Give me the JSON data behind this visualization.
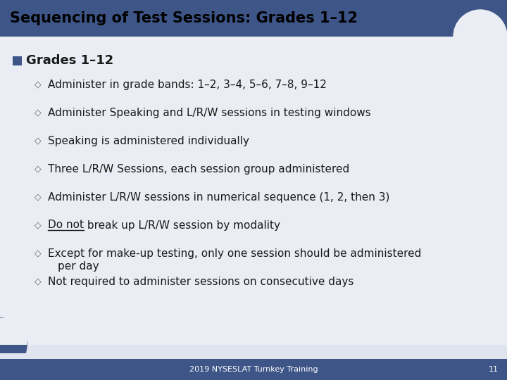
{
  "title": "Sequencing of Test Sessions: Grades 1–12",
  "title_bg_color": "#3d5587",
  "title_text_color": "#000000",
  "slide_bg_color": "#e0e4ee",
  "body_bg_color": "#eaedf4",
  "level1_bullet": "Grades 1–12",
  "level1_bullet_color": "#3d5587",
  "level2_bullets": [
    {
      "text": "Administer in grade bands: 1–2, 3–4, 5–6, 7–8, 9–12",
      "underline_prefix": null
    },
    {
      "text": "Administer Speaking and L/R/W sessions in testing windows",
      "underline_prefix": null
    },
    {
      "text": "Speaking is administered individually",
      "underline_prefix": null
    },
    {
      "text": "Three L/R/W Sessions, each session group administered",
      "underline_prefix": null
    },
    {
      "text": "Administer L/R/W sessions in numerical sequence (1, 2, then 3)",
      "underline_prefix": null
    },
    {
      "text": "Do not break up L/R/W session by modality",
      "underline_prefix": "Do not"
    },
    {
      "text": "Except for make-up testing, only one session should be administered\nper day",
      "underline_prefix": null
    },
    {
      "text": "Not required to administer sessions on consecutive days",
      "underline_prefix": null
    }
  ],
  "footer_text": "2019 NYSESLAT Turnkey Training",
  "footer_page": "11",
  "footer_bg_color": "#3d5587",
  "footer_text_color": "#ffffff",
  "text_color": "#1a1a1a",
  "diamond_color": "#666666",
  "title_font_size": 15,
  "l1_font_size": 13,
  "l2_font_size": 11
}
